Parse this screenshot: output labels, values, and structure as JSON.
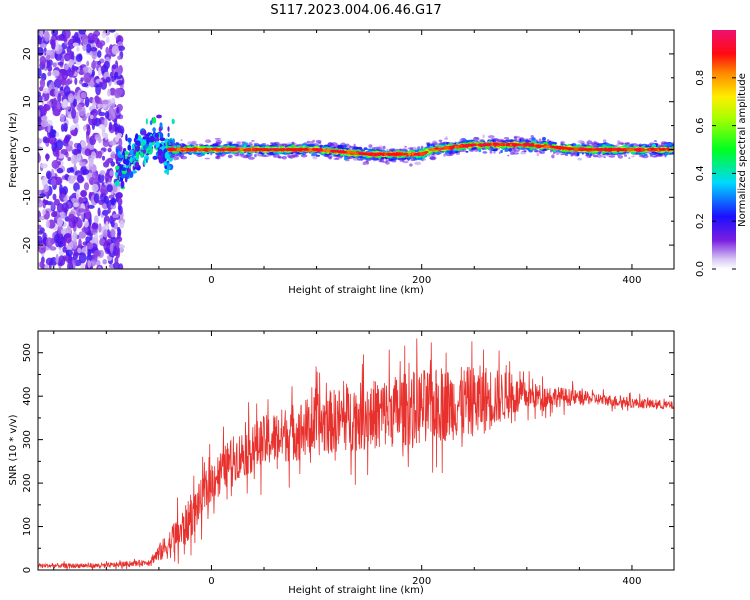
{
  "title": "S117.2023.004.06.46.G17",
  "chart_data": [
    {
      "type": "heatmap",
      "xlabel": "Height of straight line (km)",
      "ylabel": "Frequency (Hz)",
      "xlim": [
        -165,
        440
      ],
      "ylim": [
        -25,
        25
      ],
      "xticks": [
        0,
        200,
        400
      ],
      "yticks": [
        -20,
        -10,
        0,
        10,
        20
      ],
      "colorbar": {
        "label": "Normalized spectral amplitude",
        "range": [
          0.0,
          1.0
        ],
        "ticks": [
          "0.0",
          "0.2",
          "0.4",
          "0.6",
          "0.8"
        ],
        "colormap": "rainbow (purple-blue-cyan-green-yellow-red-magenta)"
      },
      "ridge": [
        {
          "x": -90,
          "y": -4
        },
        {
          "x": -70,
          "y": -1
        },
        {
          "x": -55,
          "y": 2
        },
        {
          "x": -40,
          "y": 0
        },
        {
          "x": -20,
          "y": 0
        },
        {
          "x": 0,
          "y": 0
        },
        {
          "x": 50,
          "y": 0
        },
        {
          "x": 100,
          "y": 0
        },
        {
          "x": 150,
          "y": -1
        },
        {
          "x": 200,
          "y": -1
        },
        {
          "x": 210,
          "y": 0
        },
        {
          "x": 250,
          "y": 1
        },
        {
          "x": 300,
          "y": 1
        },
        {
          "x": 350,
          "y": 0
        },
        {
          "x": 400,
          "y": 0
        },
        {
          "x": 440,
          "y": 0
        }
      ],
      "noise_region": {
        "x": [
          -165,
          -85
        ],
        "y": [
          -25,
          25
        ]
      }
    },
    {
      "type": "line",
      "xlabel": "Height of straight line (km)",
      "ylabel": "SNR (10 * v/v)",
      "xlim": [
        -165,
        440
      ],
      "ylim": [
        0,
        550
      ],
      "xticks": [
        0,
        200,
        400
      ],
      "yticks": [
        0,
        100,
        200,
        300,
        400,
        500
      ],
      "color": "#e8302c",
      "trend": [
        {
          "x": -165,
          "y": 10
        },
        {
          "x": -100,
          "y": 10
        },
        {
          "x": -60,
          "y": 18
        },
        {
          "x": -40,
          "y": 60
        },
        {
          "x": -25,
          "y": 100
        },
        {
          "x": -10,
          "y": 160
        },
        {
          "x": 0,
          "y": 205
        },
        {
          "x": 20,
          "y": 255
        },
        {
          "x": 50,
          "y": 295
        },
        {
          "x": 80,
          "y": 320
        },
        {
          "x": 120,
          "y": 345
        },
        {
          "x": 160,
          "y": 360
        },
        {
          "x": 200,
          "y": 375
        },
        {
          "x": 240,
          "y": 385
        },
        {
          "x": 280,
          "y": 400
        },
        {
          "x": 320,
          "y": 400
        },
        {
          "x": 360,
          "y": 395
        },
        {
          "x": 400,
          "y": 385
        },
        {
          "x": 440,
          "y": 378
        }
      ],
      "noise_amplitude": [
        {
          "x": -165,
          "y": 6
        },
        {
          "x": -60,
          "y": 8
        },
        {
          "x": -30,
          "y": 60
        },
        {
          "x": 0,
          "y": 60
        },
        {
          "x": 100,
          "y": 90
        },
        {
          "x": 200,
          "y": 110
        },
        {
          "x": 260,
          "y": 100
        },
        {
          "x": 300,
          "y": 40
        },
        {
          "x": 360,
          "y": 18
        },
        {
          "x": 440,
          "y": 12
        }
      ]
    }
  ]
}
